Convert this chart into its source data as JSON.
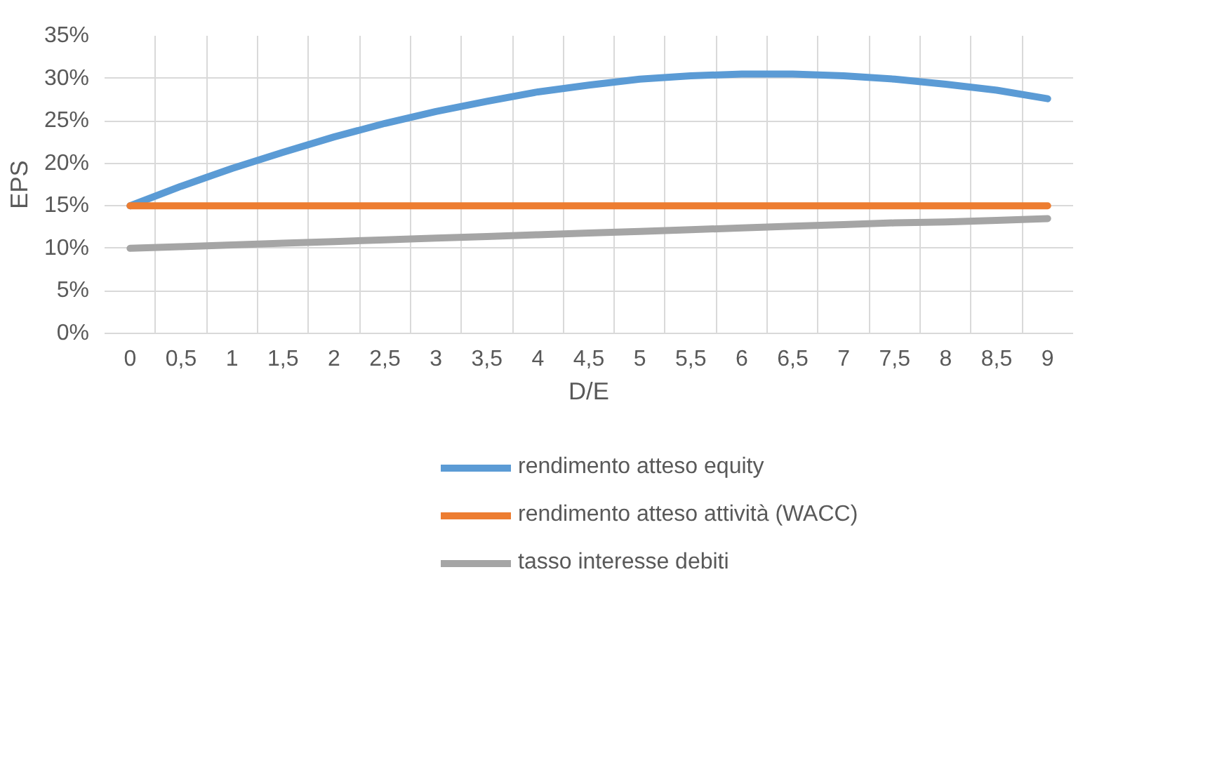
{
  "chart_data": {
    "type": "line",
    "xlabel": "D/E",
    "ylabel": "EPS",
    "categories": [
      "0",
      "0,5",
      "1",
      "1,5",
      "2",
      "2,5",
      "3",
      "3,5",
      "4",
      "4,5",
      "5",
      "5,5",
      "6",
      "6,5",
      "7",
      "7,5",
      "8",
      "8,5",
      "9"
    ],
    "series": [
      {
        "name": "rendimento atteso equity",
        "color": "#5b9bd5",
        "values": [
          15,
          17.3,
          19.4,
          21.3,
          23.1,
          24.7,
          26.1,
          27.3,
          28.4,
          29.2,
          29.9,
          30.3,
          30.5,
          30.5,
          30.3,
          29.9,
          29.3,
          28.6,
          27.6
        ]
      },
      {
        "name": "rendimento atteso attività (WACC)",
        "color": "#ed7d31",
        "values": [
          15,
          15,
          15,
          15,
          15,
          15,
          15,
          15,
          15,
          15,
          15,
          15,
          15,
          15,
          15,
          15,
          15,
          15,
          15
        ]
      },
      {
        "name": "tasso interesse debiti",
        "color": "#a5a5a5",
        "values": [
          10,
          10.2,
          10.4,
          10.6,
          10.8,
          11,
          11.2,
          11.4,
          11.6,
          11.8,
          12,
          12.2,
          12.4,
          12.6,
          12.8,
          13,
          13.1,
          13.3,
          13.5
        ]
      }
    ],
    "ylim": [
      0,
      35
    ],
    "yticks": [
      {
        "value": 0,
        "label": "0%"
      },
      {
        "value": 5,
        "label": "5%"
      },
      {
        "value": 10,
        "label": "10%"
      },
      {
        "value": 15,
        "label": "15%"
      },
      {
        "value": 20,
        "label": "20%"
      },
      {
        "value": 25,
        "label": "25%"
      },
      {
        "value": 30,
        "label": "30%"
      },
      {
        "value": 35,
        "label": "35%"
      }
    ],
    "grid": true,
    "legend": "bottom",
    "line_style": "solid",
    "marker": "none"
  }
}
